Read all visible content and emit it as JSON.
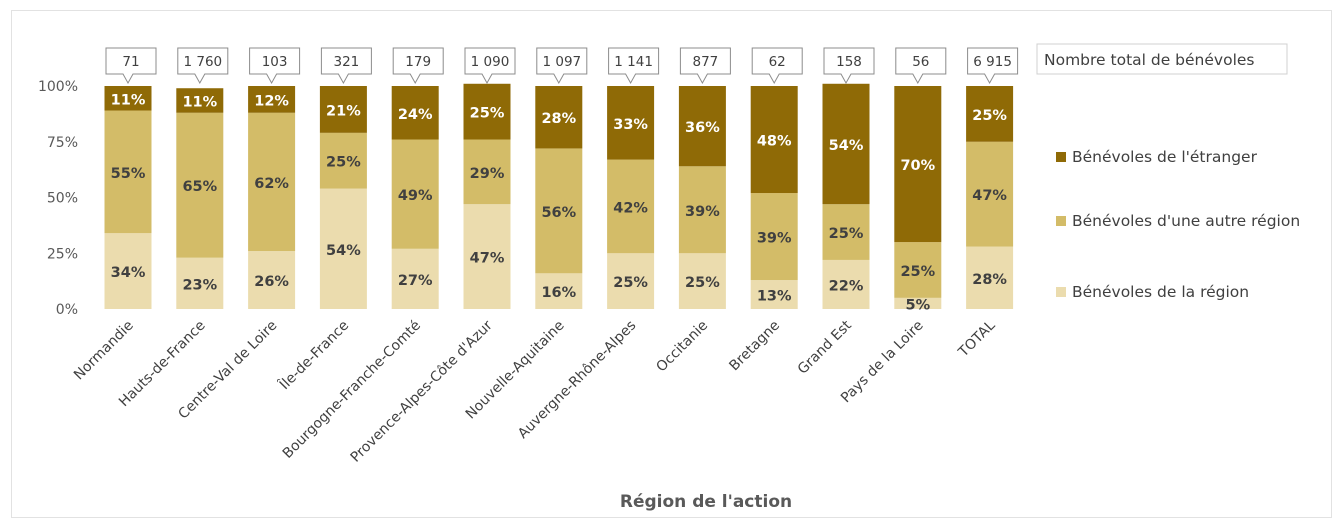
{
  "chart_data": {
    "type": "bar",
    "stacked": true,
    "normalized": true,
    "xlabel": "Région de l'action",
    "y_ticks": [
      "0%",
      "25%",
      "50%",
      "75%",
      "100%"
    ],
    "ylim": [
      0,
      100
    ],
    "categories": [
      "Normandie",
      "Hauts-de-France",
      "Centre-Val de Loire",
      "Île-de-France",
      "Bourgogne-Franche-Comté",
      "Provence-Alpes-Côte d'Azur",
      "Nouvelle-Aquitaine",
      "Auvergne-Rhône-Alpes",
      "Occitanie",
      "Bretagne",
      "Grand Est",
      "Pays de la Loire",
      "TOTAL"
    ],
    "totals_label": "Nombre total de bénévoles",
    "totals": [
      "71",
      "1 760",
      "103",
      "321",
      "179",
      "1 090",
      "1 097",
      "1 141",
      "877",
      "62",
      "158",
      "56",
      "6 915"
    ],
    "series": [
      {
        "name": "Bénévoles de la région",
        "color": "#ebdcae",
        "label_color": "#404040",
        "values": [
          34,
          23,
          26,
          54,
          27,
          47,
          16,
          25,
          25,
          13,
          22,
          5,
          28
        ]
      },
      {
        "name": "Bénévoles d'une autre région",
        "color": "#d3bc68",
        "label_color": "#404040",
        "values": [
          55,
          65,
          62,
          25,
          49,
          29,
          56,
          42,
          39,
          39,
          25,
          25,
          47
        ]
      },
      {
        "name": "Bénévoles de l'étranger",
        "color": "#8f6a06",
        "label_color": "#ffffff",
        "values": [
          11,
          11,
          12,
          21,
          24,
          25,
          28,
          33,
          36,
          48,
          54,
          70,
          25
        ]
      }
    ],
    "legend_position": "right",
    "grid": false
  }
}
